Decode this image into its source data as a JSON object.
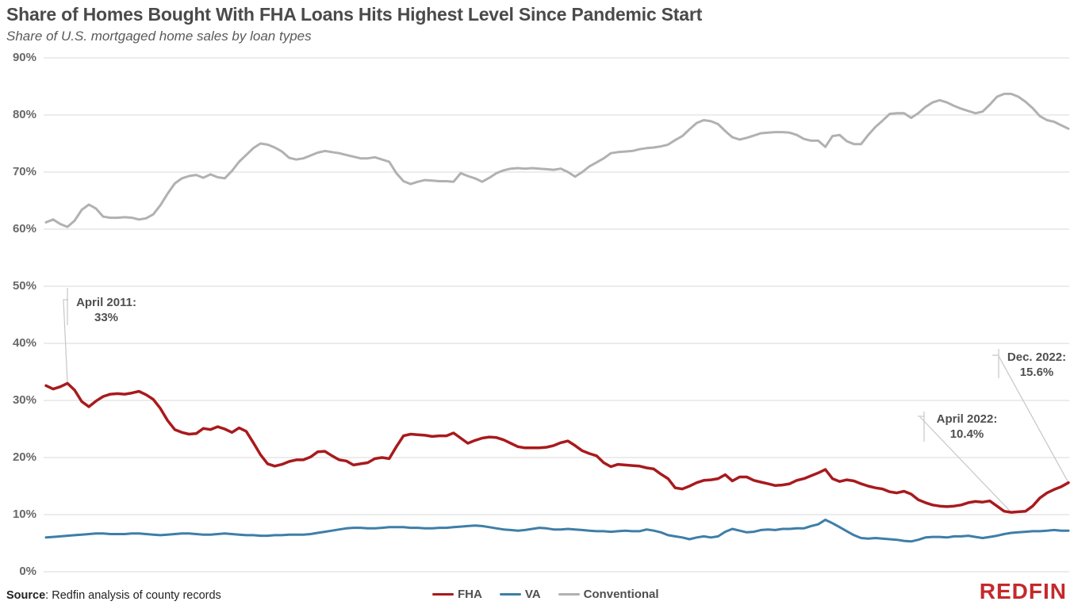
{
  "header": {
    "title": "Share of Homes Bought With FHA Loans Hits Highest Level Since Pandemic Start",
    "subtitle": "Share of U.S. mortgaged home sales by loan types"
  },
  "axis": {
    "y_ticks": [
      90,
      80,
      70,
      60,
      50,
      40,
      30,
      20,
      10,
      0
    ],
    "y_suffix": "%",
    "grid_color": "#d9d9d9",
    "leader_color": "#c6c6c6"
  },
  "chart_data": {
    "type": "line",
    "x_start": "Jan 2011",
    "x_end": "Dec 2022",
    "x_frequency": "monthly",
    "ylim": [
      0,
      90
    ],
    "grid": "horizontal",
    "legend_position": "bottom-center",
    "series": [
      {
        "name": "Conventional",
        "color": "#b3b0b0",
        "width": 3,
        "values": [
          61.2,
          61.7,
          60.9,
          60.4,
          61.5,
          63.4,
          64.3,
          63.6,
          62.2,
          62.0,
          62.0,
          62.1,
          62.0,
          61.7,
          61.9,
          62.6,
          64.2,
          66.2,
          68.0,
          68.9,
          69.3,
          69.5,
          69.0,
          69.6,
          69.1,
          68.9,
          70.2,
          71.8,
          73.0,
          74.2,
          75.0,
          74.8,
          74.3,
          73.6,
          72.5,
          72.2,
          72.4,
          72.9,
          73.4,
          73.7,
          73.5,
          73.3,
          73.0,
          72.7,
          72.4,
          72.4,
          72.6,
          72.2,
          71.8,
          69.8,
          68.4,
          67.9,
          68.3,
          68.6,
          68.5,
          68.4,
          68.4,
          68.3,
          69.8,
          69.3,
          68.9,
          68.3,
          69.0,
          69.8,
          70.3,
          70.6,
          70.7,
          70.6,
          70.7,
          70.6,
          70.5,
          70.4,
          70.6,
          70.0,
          69.2,
          70.0,
          71.0,
          71.7,
          72.4,
          73.3,
          73.5,
          73.6,
          73.7,
          74.0,
          74.2,
          74.3,
          74.5,
          74.8,
          75.6,
          76.3,
          77.5,
          78.6,
          79.1,
          78.9,
          78.4,
          77.2,
          76.1,
          75.7,
          76.0,
          76.4,
          76.8,
          76.9,
          77.0,
          77.0,
          76.9,
          76.5,
          75.8,
          75.5,
          75.5,
          74.4,
          76.3,
          76.5,
          75.4,
          74.9,
          74.9,
          76.5,
          77.9,
          79.0,
          80.2,
          80.3,
          80.3,
          79.5,
          80.3,
          81.4,
          82.2,
          82.6,
          82.2,
          81.6,
          81.1,
          80.7,
          80.3,
          80.6,
          81.8,
          83.2,
          83.7,
          83.7,
          83.2,
          82.3,
          81.2,
          79.8,
          79.1,
          78.8,
          78.2,
          77.6
        ]
      },
      {
        "name": "VA",
        "color": "#3e7ea7",
        "width": 3,
        "values": [
          6.0,
          6.1,
          6.2,
          6.3,
          6.4,
          6.5,
          6.6,
          6.7,
          6.7,
          6.6,
          6.6,
          6.6,
          6.7,
          6.7,
          6.6,
          6.5,
          6.4,
          6.5,
          6.6,
          6.7,
          6.7,
          6.6,
          6.5,
          6.5,
          6.6,
          6.7,
          6.6,
          6.5,
          6.4,
          6.4,
          6.3,
          6.3,
          6.4,
          6.4,
          6.5,
          6.5,
          6.5,
          6.6,
          6.8,
          7.0,
          7.2,
          7.4,
          7.6,
          7.7,
          7.7,
          7.6,
          7.6,
          7.7,
          7.8,
          7.8,
          7.8,
          7.7,
          7.7,
          7.6,
          7.6,
          7.7,
          7.7,
          7.8,
          7.9,
          8.0,
          8.1,
          8.0,
          7.8,
          7.6,
          7.4,
          7.3,
          7.2,
          7.3,
          7.5,
          7.7,
          7.6,
          7.4,
          7.4,
          7.5,
          7.4,
          7.3,
          7.2,
          7.1,
          7.1,
          7.0,
          7.1,
          7.2,
          7.1,
          7.1,
          7.4,
          7.2,
          6.9,
          6.4,
          6.2,
          6.0,
          5.7,
          6.0,
          6.2,
          6.0,
          6.2,
          7.0,
          7.5,
          7.2,
          6.9,
          7.0,
          7.3,
          7.4,
          7.3,
          7.5,
          7.5,
          7.6,
          7.6,
          8.0,
          8.3,
          9.1,
          8.5,
          7.8,
          7.1,
          6.4,
          5.9,
          5.8,
          5.9,
          5.8,
          5.7,
          5.6,
          5.4,
          5.3,
          5.6,
          6.0,
          6.1,
          6.1,
          6.0,
          6.2,
          6.2,
          6.3,
          6.1,
          5.9,
          6.1,
          6.3,
          6.6,
          6.8,
          6.9,
          7.0,
          7.1,
          7.1,
          7.2,
          7.3,
          7.2,
          7.2
        ]
      },
      {
        "name": "FHA",
        "color": "#a81a1d",
        "width": 3.5,
        "values": [
          32.6,
          32.0,
          32.4,
          33.0,
          31.8,
          29.8,
          28.9,
          29.9,
          30.7,
          31.1,
          31.2,
          31.1,
          31.3,
          31.6,
          31.0,
          30.2,
          28.6,
          26.5,
          24.9,
          24.4,
          24.1,
          24.2,
          25.1,
          24.9,
          25.4,
          25.0,
          24.4,
          25.2,
          24.6,
          22.6,
          20.5,
          18.9,
          18.5,
          18.8,
          19.3,
          19.6,
          19.6,
          20.1,
          21.0,
          21.1,
          20.3,
          19.6,
          19.4,
          18.7,
          18.9,
          19.1,
          19.8,
          20.0,
          19.8,
          21.9,
          23.8,
          24.1,
          24.0,
          23.9,
          23.7,
          23.8,
          23.8,
          24.3,
          23.4,
          22.5,
          23.0,
          23.4,
          23.6,
          23.5,
          23.1,
          22.5,
          21.9,
          21.7,
          21.7,
          21.7,
          21.8,
          22.1,
          22.6,
          22.9,
          22.1,
          21.2,
          20.7,
          20.3,
          19.1,
          18.4,
          18.8,
          18.7,
          18.6,
          18.5,
          18.2,
          18.0,
          17.1,
          16.3,
          14.7,
          14.5,
          15.0,
          15.6,
          16.0,
          16.1,
          16.3,
          17.0,
          15.9,
          16.6,
          16.6,
          16.0,
          15.7,
          15.4,
          15.1,
          15.2,
          15.4,
          16.0,
          16.3,
          16.8,
          17.3,
          17.9,
          16.3,
          15.8,
          16.1,
          15.9,
          15.4,
          15.0,
          14.7,
          14.5,
          14.0,
          13.8,
          14.1,
          13.6,
          12.6,
          12.1,
          11.7,
          11.5,
          11.4,
          11.5,
          11.7,
          12.1,
          12.3,
          12.2,
          12.4,
          11.5,
          10.6,
          10.4,
          10.5,
          10.6,
          11.5,
          12.9,
          13.8,
          14.4,
          14.9,
          15.6
        ]
      }
    ],
    "annotations": [
      {
        "line1": "April 2011:",
        "line2": "33%",
        "month_index": 3,
        "value": 33
      },
      {
        "line1": "April 2022:",
        "line2": "10.4%",
        "month_index": 135,
        "value": 10.4
      },
      {
        "line1": "Dec. 2022:",
        "line2": "15.6%",
        "month_index": 143,
        "value": 15.6
      }
    ]
  },
  "legend": {
    "items": [
      {
        "label": "FHA",
        "color": "#a81a1d"
      },
      {
        "label": "VA",
        "color": "#3e7ea7"
      },
      {
        "label": "Conventional",
        "color": "#b3b0b0"
      }
    ]
  },
  "footer": {
    "source_label": "Source",
    "source_text": ": Redfin analysis of county records",
    "logo_text": "REDFIN",
    "logo_color": "#c4292c"
  }
}
